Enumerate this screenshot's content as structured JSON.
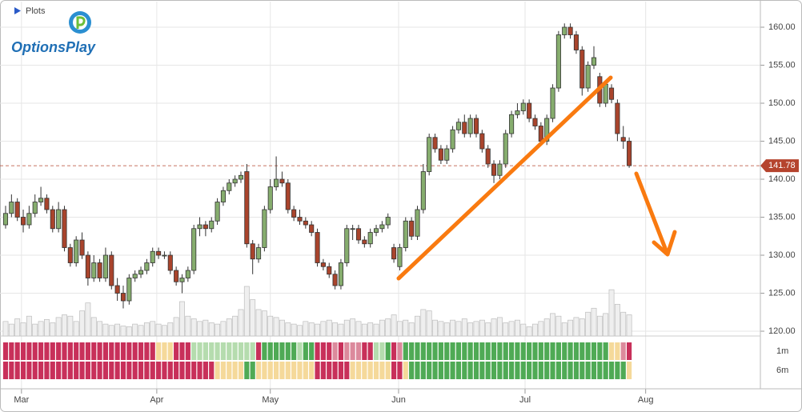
{
  "header": {
    "plots": "Plots",
    "logo": "OptionsPlay"
  },
  "chart_data": {
    "type": "candlestick",
    "ohlc": [
      [
        134,
        136.5,
        133.5,
        135.5
      ],
      [
        135.5,
        138,
        135,
        137
      ],
      [
        137,
        137.5,
        134.5,
        135
      ],
      [
        135,
        136,
        133,
        134
      ],
      [
        134,
        136.5,
        133.5,
        135.5
      ],
      [
        135.5,
        138,
        135,
        137
      ],
      [
        137,
        139,
        136.5,
        137.5
      ],
      [
        137.5,
        138,
        135.5,
        136
      ],
      [
        136,
        136.5,
        133,
        133.5
      ],
      [
        133.5,
        137,
        133,
        136
      ],
      [
        136,
        136.5,
        130.5,
        131
      ],
      [
        131,
        131.5,
        128.5,
        129
      ],
      [
        129,
        132.5,
        128.5,
        132
      ],
      [
        132,
        133,
        129.5,
        130
      ],
      [
        130,
        130.5,
        126,
        127
      ],
      [
        127,
        130,
        126.5,
        129
      ],
      [
        129,
        129.5,
        126.5,
        127
      ],
      [
        127,
        131,
        126.5,
        130
      ],
      [
        130,
        130.5,
        125.5,
        126
      ],
      [
        126,
        127,
        124,
        125
      ],
      [
        125,
        126,
        123,
        124
      ],
      [
        124,
        127.5,
        123.5,
        127
      ],
      [
        127,
        128,
        126.5,
        127.5
      ],
      [
        127.5,
        128.5,
        127,
        128
      ],
      [
        128,
        129.5,
        127.5,
        129
      ],
      [
        129,
        131,
        128.5,
        130.5
      ],
      [
        130.5,
        131,
        129.5,
        130
      ],
      [
        130,
        130.5,
        129.5,
        130
      ],
      [
        130,
        130.5,
        127.5,
        128
      ],
      [
        128,
        128.5,
        126,
        126.5
      ],
      [
        126.5,
        127.5,
        125,
        127
      ],
      [
        127,
        128.5,
        126.5,
        128
      ],
      [
        128,
        134,
        127.5,
        133.5
      ],
      [
        133.5,
        135,
        132.5,
        134
      ],
      [
        134,
        134.5,
        132.5,
        133.5
      ],
      [
        133.5,
        135,
        133,
        134.5
      ],
      [
        134.5,
        137.5,
        134,
        137
      ],
      [
        137,
        139,
        136.5,
        138.5
      ],
      [
        138.5,
        140,
        138,
        139.5
      ],
      [
        139.5,
        140.5,
        139,
        140
      ],
      [
        140,
        141,
        139.5,
        140.5
      ],
      [
        141,
        142,
        131,
        131.5
      ],
      [
        131.5,
        132,
        127.5,
        129.5
      ],
      [
        129.5,
        131.5,
        129,
        131
      ],
      [
        131,
        136.5,
        130.5,
        136
      ],
      [
        136,
        140,
        135.5,
        139
      ],
      [
        139,
        143,
        138.5,
        140
      ],
      [
        140,
        141,
        139,
        139.5
      ],
      [
        139.5,
        140,
        135.5,
        136
      ],
      [
        136,
        136.5,
        134.5,
        135
      ],
      [
        135,
        136,
        134,
        134.5
      ],
      [
        134.5,
        135,
        133.5,
        134
      ],
      [
        134,
        134.5,
        132.5,
        133
      ],
      [
        133,
        133.5,
        128.5,
        129
      ],
      [
        129,
        129.5,
        128,
        128.5
      ],
      [
        128.5,
        129,
        127,
        127.5
      ],
      [
        127.5,
        128,
        125.5,
        126
      ],
      [
        126,
        129.5,
        125.5,
        129
      ],
      [
        129,
        134,
        128.5,
        133.5
      ],
      [
        133.5,
        134,
        132,
        133.5
      ],
      [
        133.5,
        134,
        131.5,
        132
      ],
      [
        132,
        132.5,
        131,
        131.5
      ],
      [
        131.5,
        133.5,
        131,
        133
      ],
      [
        133,
        134,
        132.5,
        133.5
      ],
      [
        133.5,
        134.5,
        133,
        134
      ],
      [
        134,
        135.5,
        133.5,
        135
      ],
      [
        131,
        131.5,
        129,
        129.5
      ],
      [
        128.5,
        131.5,
        128,
        131
      ],
      [
        131,
        135,
        130.5,
        134.5
      ],
      [
        134.5,
        135,
        132,
        132.5
      ],
      [
        132.5,
        136.5,
        132,
        136
      ],
      [
        136,
        142,
        135.5,
        141
      ],
      [
        141,
        146,
        140.5,
        145.5
      ],
      [
        145.5,
        146,
        143.5,
        144
      ],
      [
        144,
        144.5,
        142,
        142.5
      ],
      [
        142.5,
        144.5,
        142,
        144
      ],
      [
        144,
        147,
        143.5,
        146.5
      ],
      [
        146.5,
        148,
        146,
        147.5
      ],
      [
        147.5,
        148.5,
        145.5,
        146
      ],
      [
        146,
        148.5,
        145.5,
        148
      ],
      [
        148,
        148.5,
        145.5,
        146
      ],
      [
        146,
        146.5,
        143.5,
        144
      ],
      [
        144,
        144.5,
        141.5,
        142
      ],
      [
        142,
        142.5,
        139.5,
        140.5
      ],
      [
        140.5,
        142.5,
        140,
        142
      ],
      [
        142,
        146.5,
        141.5,
        146
      ],
      [
        146,
        149,
        145.5,
        148.5
      ],
      [
        148.5,
        150,
        148,
        149
      ],
      [
        149,
        150.5,
        148.5,
        150
      ],
      [
        150,
        150.5,
        147.5,
        148
      ],
      [
        148,
        148.5,
        146.5,
        147
      ],
      [
        147,
        147.5,
        144.5,
        145
      ],
      [
        145,
        148.5,
        144.5,
        148
      ],
      [
        148,
        152.5,
        147.5,
        152
      ],
      [
        152,
        159.5,
        151.5,
        159
      ],
      [
        159,
        160.5,
        158.5,
        160
      ],
      [
        160,
        160.5,
        158.5,
        159
      ],
      [
        159,
        159.5,
        156.5,
        157
      ],
      [
        157,
        157.5,
        151,
        152
      ],
      [
        152,
        155.5,
        151.5,
        155
      ],
      [
        155,
        157.5,
        154.5,
        156
      ],
      [
        153.5,
        154,
        149.5,
        150
      ],
      [
        150,
        153,
        149.5,
        152.5
      ],
      [
        152,
        152.5,
        150,
        150.5
      ],
      [
        150,
        150.5,
        145,
        146
      ],
      [
        145.5,
        147,
        144,
        145
      ],
      [
        145,
        145.5,
        141.5,
        141.78
      ]
    ],
    "volume": [
      22,
      18,
      26,
      20,
      30,
      18,
      22,
      25,
      20,
      28,
      32,
      30,
      22,
      38,
      50,
      28,
      22,
      18,
      16,
      18,
      15,
      14,
      18,
      16,
      20,
      22,
      18,
      16,
      20,
      28,
      52,
      30,
      26,
      22,
      24,
      20,
      18,
      22,
      26,
      30,
      40,
      75,
      55,
      40,
      38,
      30,
      28,
      24,
      20,
      18,
      16,
      22,
      20,
      18,
      22,
      24,
      20,
      18,
      24,
      26,
      22,
      18,
      20,
      18,
      24,
      26,
      32,
      22,
      24,
      20,
      30,
      40,
      38,
      24,
      22,
      20,
      24,
      22,
      26,
      20,
      22,
      24,
      20,
      26,
      28,
      20,
      22,
      24,
      18,
      14,
      18,
      22,
      26,
      34,
      30,
      20,
      24,
      28,
      26,
      36,
      42,
      30,
      34,
      70,
      48,
      36,
      32
    ],
    "up_color": "#86ad6e",
    "down_color": "#a9442c",
    "volume_color": "#efefef",
    "last_price_color": "#b5442e",
    "ylim": [
      119.37,
      163.37
    ],
    "yticks": [
      {
        "value": 120,
        "label": "120.00"
      },
      {
        "value": 125,
        "label": "125.00"
      },
      {
        "value": 130,
        "label": "130.00"
      },
      {
        "value": 135,
        "label": "135.00"
      },
      {
        "value": 140,
        "label": "140.00"
      },
      {
        "value": 145,
        "label": "145.00"
      },
      {
        "value": 150,
        "label": "150.00"
      },
      {
        "value": 155,
        "label": "155.00"
      },
      {
        "value": 160,
        "label": "160.00"
      }
    ],
    "xlim": [
      -0.95,
      128.3
    ],
    "xticks": [
      {
        "value": 2.7,
        "label": "Mar"
      },
      {
        "value": 25.7,
        "label": "Apr"
      },
      {
        "value": 45,
        "label": "May"
      },
      {
        "value": 66.8,
        "label": "Jun"
      },
      {
        "value": 88.3,
        "label": "Jul"
      },
      {
        "value": 108.8,
        "label": "Aug"
      }
    ],
    "grid": true,
    "strips": [
      {
        "name": "1m",
        "colors": [
          "#c8305a",
          "#c8305a",
          "#c8305a",
          "#c8305a",
          "#c8305a",
          "#c8305a",
          "#c8305a",
          "#c8305a",
          "#c8305a",
          "#c8305a",
          "#c8305a",
          "#c8305a",
          "#c8305a",
          "#c8305a",
          "#c8305a",
          "#c8305a",
          "#c8305a",
          "#c8305a",
          "#c8305a",
          "#c8305a",
          "#c8305a",
          "#c8305a",
          "#c8305a",
          "#c8305a",
          "#c8305a",
          "#c8305a",
          "#f5d99a",
          "#f5d99a",
          "#f5d99a",
          "#c8305a",
          "#c8305a",
          "#c8305a",
          "#b5dcae",
          "#b5dcae",
          "#b5dcae",
          "#b5dcae",
          "#b5dcae",
          "#b5dcae",
          "#b5dcae",
          "#b5dcae",
          "#b5dcae",
          "#b5dcae",
          "#b5dcae",
          "#c8305a",
          "#4faa55",
          "#4faa55",
          "#4faa55",
          "#4faa55",
          "#4faa55",
          "#4faa55",
          "#b5dcae",
          "#4faa55",
          "#4faa55",
          "#c8305a",
          "#c8305a",
          "#c8305a",
          "#dc8a9c",
          "#c8305a",
          "#dc8a9c",
          "#dc8a9c",
          "#dc8a9c",
          "#c8305a",
          "#c8305a",
          "#b5dcae",
          "#b5dcae",
          "#4faa55",
          "#c8305a",
          "#dc8a9c",
          "#4faa55",
          "#4faa55",
          "#4faa55",
          "#4faa55",
          "#4faa55",
          "#4faa55",
          "#4faa55",
          "#4faa55",
          "#4faa55",
          "#4faa55",
          "#4faa55",
          "#4faa55",
          "#4faa55",
          "#4faa55",
          "#4faa55",
          "#4faa55",
          "#4faa55",
          "#4faa55",
          "#4faa55",
          "#4faa55",
          "#4faa55",
          "#4faa55",
          "#4faa55",
          "#4faa55",
          "#4faa55",
          "#4faa55",
          "#4faa55",
          "#4faa55",
          "#4faa55",
          "#4faa55",
          "#4faa55",
          "#4faa55",
          "#4faa55",
          "#4faa55",
          "#4faa55",
          "#f5d99a",
          "#f5d99a",
          "#dc8a9c",
          "#c8305a"
        ]
      },
      {
        "name": "6m",
        "colors": [
          "#c8305a",
          "#c8305a",
          "#c8305a",
          "#c8305a",
          "#c8305a",
          "#c8305a",
          "#c8305a",
          "#c8305a",
          "#c8305a",
          "#c8305a",
          "#c8305a",
          "#c8305a",
          "#c8305a",
          "#c8305a",
          "#c8305a",
          "#c8305a",
          "#c8305a",
          "#c8305a",
          "#c8305a",
          "#c8305a",
          "#c8305a",
          "#c8305a",
          "#c8305a",
          "#c8305a",
          "#c8305a",
          "#c8305a",
          "#c8305a",
          "#c8305a",
          "#c8305a",
          "#c8305a",
          "#c8305a",
          "#c8305a",
          "#c8305a",
          "#c8305a",
          "#c8305a",
          "#c8305a",
          "#f5d99a",
          "#f5d99a",
          "#f5d99a",
          "#f5d99a",
          "#f5d99a",
          "#4faa55",
          "#4faa55",
          "#f5d99a",
          "#f5d99a",
          "#f5d99a",
          "#f5d99a",
          "#f5d99a",
          "#f5d99a",
          "#f5d99a",
          "#f5d99a",
          "#f5d99a",
          "#f5d99a",
          "#c8305a",
          "#c8305a",
          "#c8305a",
          "#c8305a",
          "#c8305a",
          "#c8305a",
          "#f5d99a",
          "#f5d99a",
          "#f5d99a",
          "#f5d99a",
          "#f5d99a",
          "#f5d99a",
          "#f5d99a",
          "#c8305a",
          "#c8305a",
          "#f5d99a",
          "#4faa55",
          "#4faa55",
          "#4faa55",
          "#4faa55",
          "#4faa55",
          "#4faa55",
          "#4faa55",
          "#4faa55",
          "#4faa55",
          "#4faa55",
          "#4faa55",
          "#4faa55",
          "#4faa55",
          "#4faa55",
          "#4faa55",
          "#4faa55",
          "#4faa55",
          "#4faa55",
          "#4faa55",
          "#4faa55",
          "#4faa55",
          "#4faa55",
          "#4faa55",
          "#4faa55",
          "#4faa55",
          "#4faa55",
          "#4faa55",
          "#4faa55",
          "#4faa55",
          "#4faa55",
          "#4faa55",
          "#4faa55",
          "#4faa55",
          "#4faa55",
          "#4faa55",
          "#4faa55",
          "#4faa55",
          "#f5d99a"
        ]
      }
    ]
  }
}
